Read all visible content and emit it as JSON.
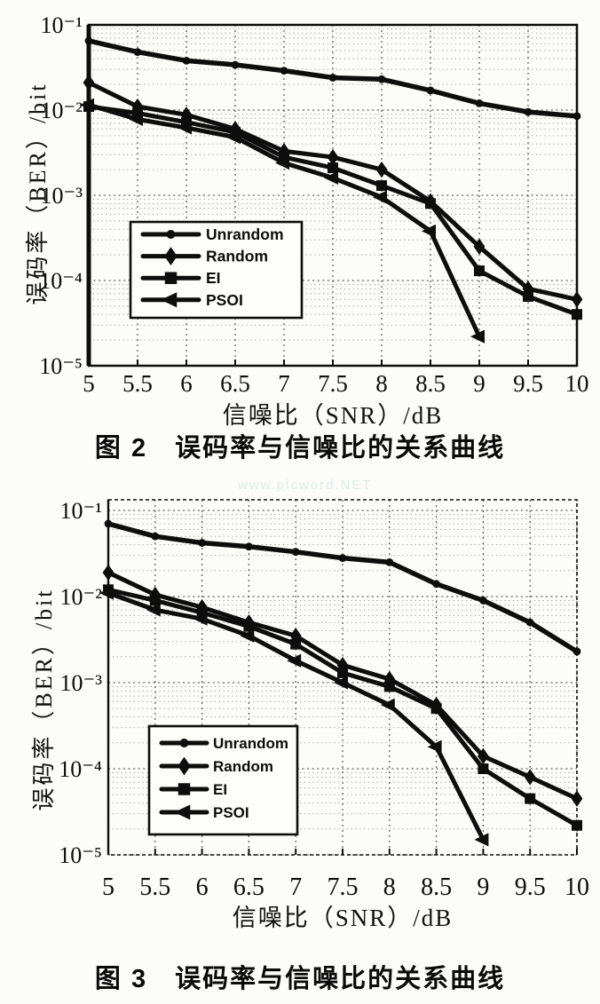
{
  "watermark": {
    "text": "www.plcword.NET"
  },
  "chart_data": [
    {
      "id": "figure2",
      "type": "line",
      "yscale": "log",
      "grid": true,
      "legend_position": "center-left",
      "caption": "图 2　误码率与信噪比的关系曲线",
      "xlabel": "信噪比（SNR）/dB",
      "ylabel": "误码率（BER）/bit",
      "xlim": [
        5,
        10
      ],
      "ylim": [
        1e-05,
        0.1
      ],
      "x_ticks": [
        "5",
        "5.5",
        "6",
        "6.5",
        "7",
        "7.5",
        "8",
        "8.5",
        "9",
        "9.5",
        "10"
      ],
      "y_ticks": [
        "10⁻¹",
        "10⁻²",
        "10⁻³",
        "10⁻⁴",
        "10⁻⁵"
      ],
      "y_tick_values": [
        0.1,
        0.01,
        0.001,
        0.0001,
        1e-05
      ],
      "x": [
        5,
        5.5,
        6,
        6.5,
        7,
        7.5,
        8,
        8.5,
        9,
        9.5,
        10
      ],
      "series": [
        {
          "name": "Unrandom",
          "marker": "dot",
          "values": [
            0.065,
            0.048,
            0.038,
            0.034,
            0.029,
            0.024,
            0.023,
            0.017,
            0.012,
            0.0095,
            0.0085
          ]
        },
        {
          "name": "Random",
          "marker": "diamond",
          "values": [
            0.021,
            0.011,
            0.0088,
            0.006,
            0.0033,
            0.0028,
            0.002,
            0.00085,
            0.00025,
            8e-05,
            6e-05
          ]
        },
        {
          "name": "EI",
          "marker": "square",
          "values": [
            0.011,
            0.0092,
            0.0072,
            0.0055,
            0.0028,
            0.0021,
            0.0013,
            0.0008,
            0.00013,
            6.5e-05,
            4e-05
          ]
        },
        {
          "name": "PSOI",
          "marker": "triangle-left",
          "values": [
            0.0115,
            0.0078,
            0.0062,
            0.0048,
            0.0024,
            0.0016,
            0.00095,
            0.00038,
            2.2e-05,
            null,
            null
          ]
        }
      ]
    },
    {
      "id": "figure3",
      "type": "line",
      "yscale": "log",
      "grid": true,
      "legend_position": "center-left",
      "caption": "图 3　误码率与信噪比的关系曲线",
      "xlabel": "信噪比（SNR）/dB",
      "ylabel": "误码率（BER）/bit",
      "xlim": [
        5,
        10
      ],
      "ylim": [
        1e-05,
        0.1
      ],
      "x_ticks": [
        "5",
        "5.5",
        "6",
        "6.5",
        "7",
        "7.5",
        "8",
        "8.5",
        "9",
        "9.5",
        "10"
      ],
      "y_ticks": [
        "10⁻¹",
        "10⁻²",
        "10⁻³",
        "10⁻⁴",
        "10⁻⁵"
      ],
      "y_tick_values": [
        0.1,
        0.01,
        0.001,
        0.0001,
        1e-05
      ],
      "x": [
        5,
        5.5,
        6,
        6.5,
        7,
        7.5,
        8,
        8.5,
        9,
        9.5,
        10
      ],
      "series": [
        {
          "name": "Unrandom",
          "marker": "dot",
          "values": [
            0.07,
            0.05,
            0.042,
            0.038,
            0.033,
            0.028,
            0.025,
            0.014,
            0.009,
            0.005,
            0.0023
          ]
        },
        {
          "name": "Random",
          "marker": "diamond",
          "values": [
            0.019,
            0.0105,
            0.0075,
            0.005,
            0.0035,
            0.0016,
            0.0011,
            0.00055,
            0.00014,
            8e-05,
            4.5e-05
          ]
        },
        {
          "name": "EI",
          "marker": "square",
          "values": [
            0.012,
            0.009,
            0.0065,
            0.0045,
            0.0028,
            0.0013,
            0.0009,
            0.0005,
            0.0001,
            4.5e-05,
            2.2e-05
          ]
        },
        {
          "name": "PSOI",
          "marker": "triangle-left",
          "values": [
            0.011,
            0.007,
            0.0055,
            0.0035,
            0.0018,
            0.001,
            0.00055,
            0.00018,
            1.5e-05,
            null,
            null
          ]
        }
      ]
    }
  ]
}
